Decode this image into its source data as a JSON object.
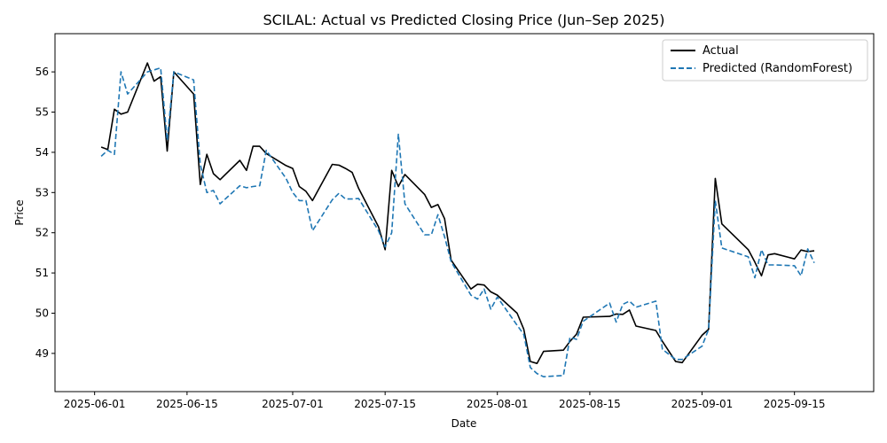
{
  "chart_data": {
    "type": "line",
    "title": "SCILAL: Actual vs Predicted Closing Price (Jun–Sep 2025)",
    "xlabel": "Date",
    "ylabel": "Price",
    "xlim": [
      "2025-05-26",
      "2025-09-27"
    ],
    "ylim": [
      48.05,
      56.95
    ],
    "x_ticks": [
      "2025-06-01",
      "2025-06-15",
      "2025-07-01",
      "2025-07-15",
      "2025-08-01",
      "2025-08-15",
      "2025-09-01",
      "2025-09-15"
    ],
    "y_ticks": [
      49,
      50,
      51,
      52,
      53,
      54,
      55,
      56
    ],
    "grid": false,
    "legend_position": "top-right",
    "x": [
      "2025-06-02",
      "2025-06-03",
      "2025-06-04",
      "2025-06-05",
      "2025-06-06",
      "2025-06-09",
      "2025-06-10",
      "2025-06-11",
      "2025-06-12",
      "2025-06-13",
      "2025-06-16",
      "2025-06-17",
      "2025-06-18",
      "2025-06-19",
      "2025-06-20",
      "2025-06-23",
      "2025-06-24",
      "2025-06-25",
      "2025-06-26",
      "2025-06-27",
      "2025-06-30",
      "2025-07-01",
      "2025-07-02",
      "2025-07-03",
      "2025-07-04",
      "2025-07-07",
      "2025-07-08",
      "2025-07-09",
      "2025-07-10",
      "2025-07-11",
      "2025-07-14",
      "2025-07-15",
      "2025-07-16",
      "2025-07-17",
      "2025-07-18",
      "2025-07-21",
      "2025-07-22",
      "2025-07-23",
      "2025-07-24",
      "2025-07-25",
      "2025-07-28",
      "2025-07-29",
      "2025-07-30",
      "2025-07-31",
      "2025-08-01",
      "2025-08-04",
      "2025-08-05",
      "2025-08-06",
      "2025-08-07",
      "2025-08-08",
      "2025-08-11",
      "2025-08-12",
      "2025-08-13",
      "2025-08-14",
      "2025-08-18",
      "2025-08-19",
      "2025-08-20",
      "2025-08-21",
      "2025-08-22",
      "2025-08-25",
      "2025-08-26",
      "2025-08-28",
      "2025-08-29",
      "2025-09-01",
      "2025-09-02",
      "2025-09-03",
      "2025-09-04",
      "2025-09-08",
      "2025-09-09",
      "2025-09-10",
      "2025-09-11",
      "2025-09-12",
      "2025-09-15",
      "2025-09-16",
      "2025-09-17",
      "2025-09-18"
    ],
    "series": [
      {
        "name": "Actual",
        "color": "#000000",
        "style": "solid",
        "values": [
          54.13,
          54.07,
          55.07,
          54.95,
          55.0,
          56.22,
          55.77,
          55.88,
          54.03,
          56.0,
          55.45,
          53.2,
          53.95,
          53.47,
          53.32,
          53.8,
          53.55,
          54.15,
          54.15,
          53.97,
          53.67,
          53.6,
          53.15,
          53.03,
          52.8,
          53.7,
          53.68,
          53.6,
          53.5,
          53.1,
          52.15,
          51.58,
          53.55,
          53.15,
          53.45,
          52.95,
          52.63,
          52.7,
          52.35,
          51.32,
          50.6,
          50.72,
          50.7,
          50.53,
          50.45,
          50.0,
          49.6,
          48.8,
          48.75,
          49.05,
          49.08,
          49.3,
          49.48,
          49.9,
          49.92,
          49.98,
          49.97,
          50.08,
          49.68,
          49.57,
          49.3,
          48.8,
          48.77,
          49.45,
          49.6,
          53.35,
          52.22,
          51.58,
          51.27,
          50.93,
          51.45,
          51.48,
          51.35,
          51.57,
          51.53,
          51.55
        ]
      },
      {
        "name": "Predicted (RandomForest)",
        "color": "#1f77b4",
        "style": "dashed",
        "values": [
          53.9,
          54.05,
          53.95,
          56.0,
          55.45,
          56.0,
          56.05,
          56.1,
          54.3,
          56.0,
          55.8,
          53.7,
          53.0,
          53.05,
          52.72,
          53.17,
          53.12,
          53.15,
          53.17,
          54.05,
          53.35,
          53.0,
          52.8,
          52.8,
          52.05,
          52.82,
          52.98,
          52.84,
          52.84,
          52.85,
          52.05,
          51.65,
          52.0,
          54.45,
          52.72,
          51.95,
          51.95,
          52.45,
          51.9,
          51.28,
          50.45,
          50.35,
          50.6,
          50.1,
          50.4,
          49.7,
          49.47,
          48.65,
          48.5,
          48.42,
          48.45,
          49.4,
          49.35,
          49.8,
          50.25,
          49.78,
          50.22,
          50.3,
          50.15,
          50.3,
          49.1,
          48.85,
          48.85,
          49.18,
          49.6,
          52.8,
          51.62,
          51.4,
          50.88,
          51.58,
          51.2,
          51.2,
          51.18,
          50.93,
          51.6,
          51.25
        ]
      }
    ]
  }
}
